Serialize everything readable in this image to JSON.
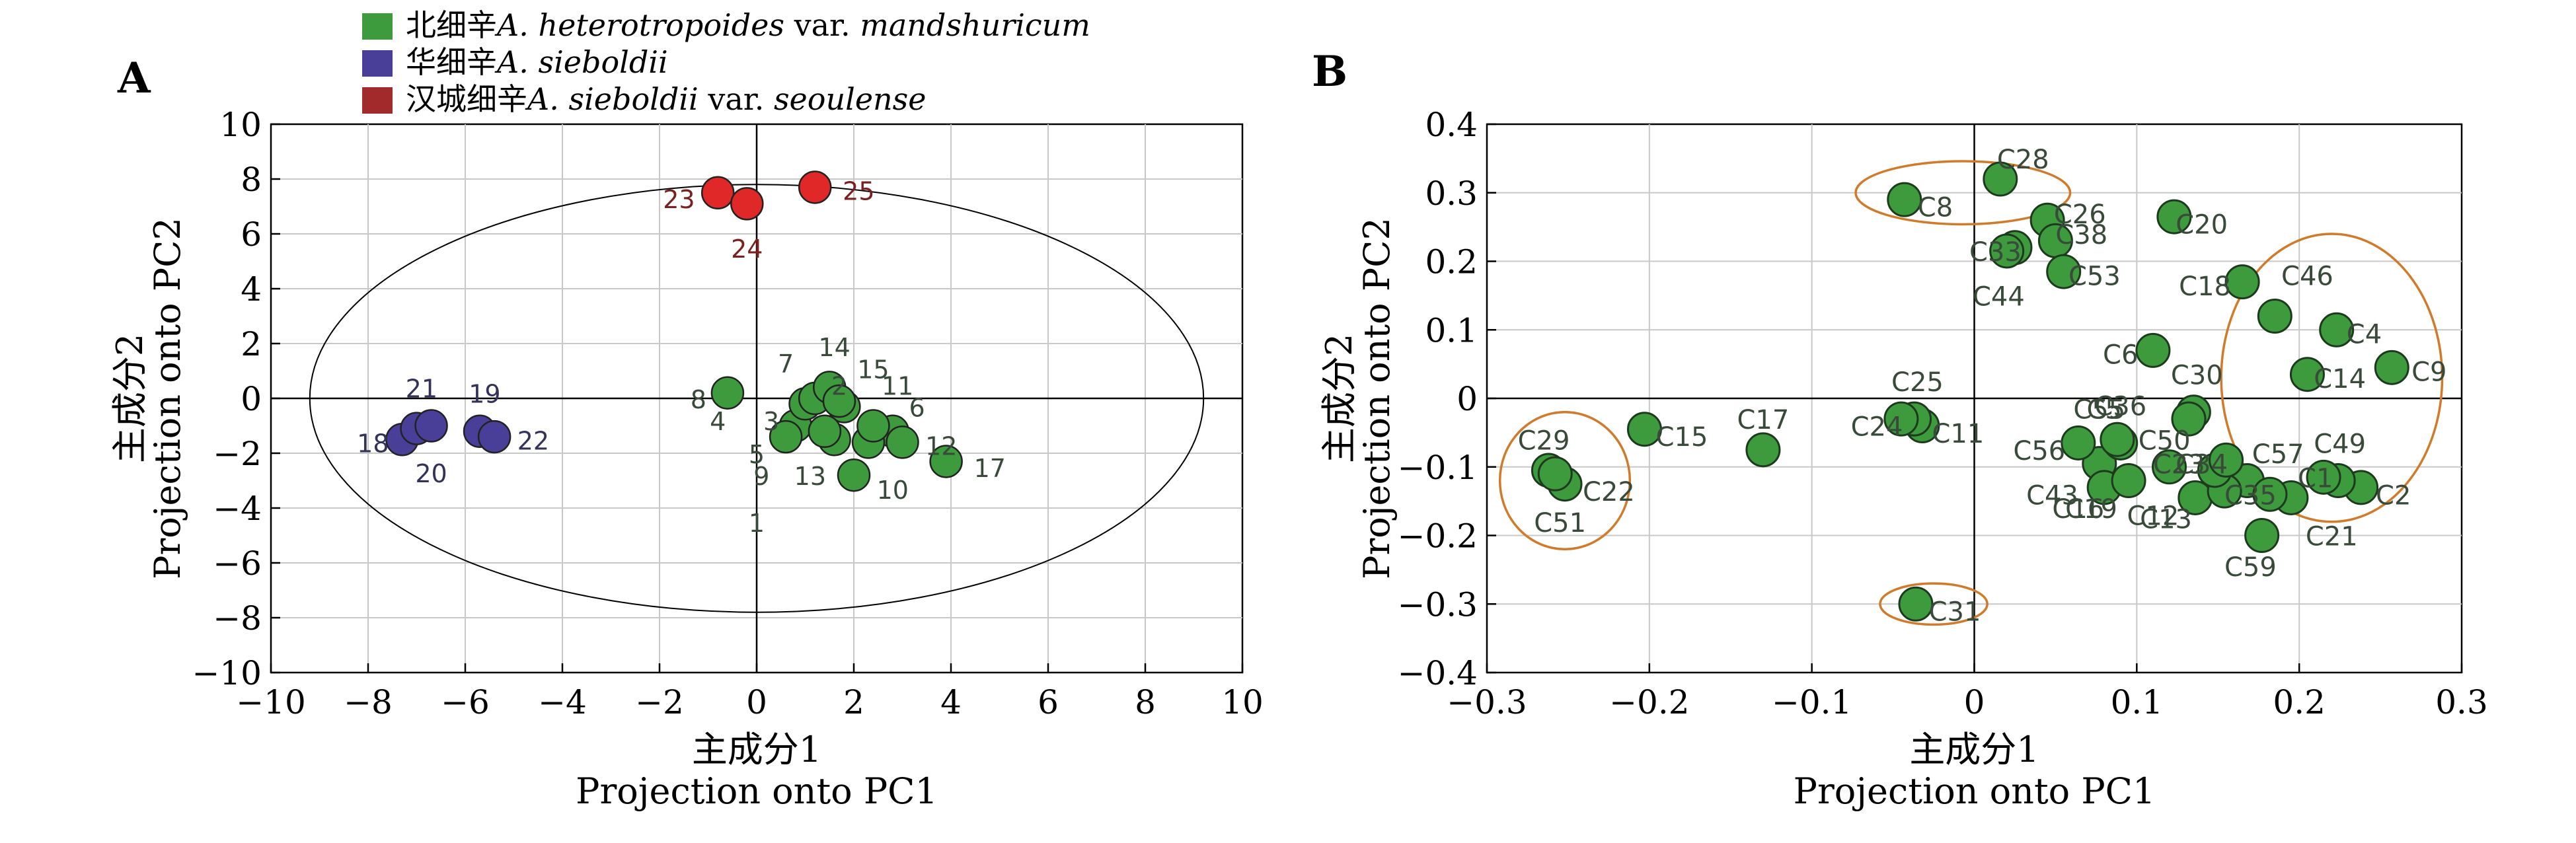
{
  "legend": {
    "position": "top",
    "items": [
      {
        "cn": "北细辛",
        "latin": "A. heterotropoides",
        "var": " var. ",
        "varname": "mandshuricum",
        "color": "#3d9a3d"
      },
      {
        "cn": "华细辛",
        "latin": "A. sieboldii",
        "var": "",
        "varname": "",
        "color": "#4a3f98"
      },
      {
        "cn": "汉城细辛",
        "latin": "A. sieboldii",
        "var": " var. ",
        "varname": "seoulense",
        "color": "#a32a2a"
      }
    ]
  },
  "chart_data": [
    {
      "panel": "A",
      "type": "scatter",
      "xlabel_cn": "主成分1",
      "xlabel": "Projection onto PC1",
      "ylabel_cn": "主成分2",
      "ylabel": "Projection onto PC2",
      "xlim": [
        -10,
        10
      ],
      "ylim": [
        -10,
        10
      ],
      "xticks": [
        -10,
        -8,
        -6,
        -4,
        -2,
        0,
        2,
        4,
        6,
        8,
        10
      ],
      "yticks": [
        -10,
        -8,
        -6,
        -4,
        -2,
        0,
        2,
        4,
        6,
        8,
        10
      ],
      "xtick_labels": [
        "−10",
        "−8",
        "−6",
        "−4",
        "−2",
        "0",
        "2",
        "4",
        "6",
        "8",
        "10"
      ],
      "ytick_labels": [
        "−10",
        "−8",
        "−6",
        "−4",
        "−2",
        "0",
        "2",
        "4",
        "6",
        "8",
        "10"
      ],
      "grid": true,
      "ellipse": {
        "cx": 0,
        "cy": 0,
        "rx": 9.2,
        "ry": 7.8
      },
      "series": [
        {
          "group": 0,
          "color": "#3d9a3d",
          "label_color": "#3a4a3a",
          "points": [
            {
              "id": "1",
              "x": 2.0,
              "y": -2.8,
              "lx": 0,
              "ly": -4.5
            },
            {
              "id": "2",
              "x": 1.8,
              "y": -0.3,
              "lx": 1.7,
              "ly": 0.5
            },
            {
              "id": "3",
              "x": 0.8,
              "y": -1.0,
              "lx": 0.3,
              "ly": -0.8
            },
            {
              "id": "4",
              "x": 1.0,
              "y": -0.2,
              "lx": -0.8,
              "ly": -0.8
            },
            {
              "id": "5",
              "x": 1.6,
              "y": -1.5,
              "lx": 0,
              "ly": -2.0
            },
            {
              "id": "6",
              "x": 2.8,
              "y": -1.2,
              "lx": 3.3,
              "ly": -0.3
            },
            {
              "id": "7",
              "x": 1.2,
              "y": 0.0,
              "lx": 0.6,
              "ly": 1.3
            },
            {
              "id": "8",
              "x": -0.6,
              "y": 0.2,
              "lx": -1.2,
              "ly": 0
            },
            {
              "id": "9",
              "x": 0.6,
              "y": -1.4,
              "lx": 0.1,
              "ly": -2.8
            },
            {
              "id": "10",
              "x": 2.3,
              "y": -1.6,
              "lx": 2.8,
              "ly": -3.3
            },
            {
              "id": "11",
              "x": 2.4,
              "y": -1.0,
              "lx": 2.9,
              "ly": 0.5
            },
            {
              "id": "12",
              "x": 3.0,
              "y": -1.6,
              "lx": 3.8,
              "ly": -1.7
            },
            {
              "id": "13",
              "x": 1.4,
              "y": -1.2,
              "lx": 1.1,
              "ly": -2.8
            },
            {
              "id": "14",
              "x": 1.5,
              "y": 0.4,
              "lx": 1.6,
              "ly": 1.9
            },
            {
              "id": "15",
              "x": 1.7,
              "y": -0.1,
              "lx": 2.4,
              "ly": 1.1
            },
            {
              "id": "17",
              "x": 3.9,
              "y": -2.3,
              "lx": 4.8,
              "ly": -2.5
            }
          ]
        },
        {
          "group": 1,
          "color": "#4a3f98",
          "label_color": "#33335a",
          "points": [
            {
              "id": "18",
              "x": -7.3,
              "y": -1.5,
              "lx": -7.9,
              "ly": -1.6
            },
            {
              "id": "19",
              "x": -5.7,
              "y": -1.2,
              "lx": -5.6,
              "ly": 0.2
            },
            {
              "id": "20",
              "x": -7.0,
              "y": -1.1,
              "lx": -6.7,
              "ly": -2.7
            },
            {
              "id": "21",
              "x": -6.7,
              "y": -1.0,
              "lx": -6.9,
              "ly": 0.4
            },
            {
              "id": "22",
              "x": -5.4,
              "y": -1.4,
              "lx": -4.6,
              "ly": -1.5
            }
          ]
        },
        {
          "group": 2,
          "color": "#e02828",
          "label_color": "#7a2020",
          "points": [
            {
              "id": "23",
              "x": -0.8,
              "y": 7.5,
              "lx": -1.6,
              "ly": 7.3
            },
            {
              "id": "24",
              "x": -0.2,
              "y": 7.1,
              "lx": -0.2,
              "ly": 5.5
            },
            {
              "id": "25",
              "x": 1.2,
              "y": 7.7,
              "lx": 2.1,
              "ly": 7.6
            }
          ]
        }
      ]
    },
    {
      "panel": "B",
      "type": "scatter",
      "xlabel_cn": "主成分1",
      "xlabel": "Projection onto PC1",
      "ylabel_cn": "主成分2",
      "ylabel": "Projection onto PC2",
      "xlim": [
        -0.3,
        0.3
      ],
      "ylim": [
        -0.4,
        0.4
      ],
      "xticks": [
        -0.3,
        -0.2,
        -0.1,
        0,
        0.1,
        0.2,
        0.3
      ],
      "yticks": [
        -0.4,
        -0.3,
        -0.2,
        -0.1,
        0,
        0.1,
        0.2,
        0.3,
        0.4
      ],
      "xtick_labels": [
        "−0.3",
        "−0.2",
        "−0.1",
        "0",
        "0.1",
        "0.2",
        "0.3"
      ],
      "ytick_labels": [
        "−0.4",
        "−0.3",
        "−0.2",
        "−0.1",
        "0",
        "0.1",
        "0.2",
        "0.3",
        "0.4"
      ],
      "grid": true,
      "ellipses": [
        {
          "cx": -0.252,
          "cy": -0.12,
          "rx": 0.04,
          "ry": 0.1
        },
        {
          "cx": -0.007,
          "cy": 0.3,
          "rx": 0.066,
          "ry": 0.046
        },
        {
          "cx": -0.025,
          "cy": -0.3,
          "rx": 0.033,
          "ry": 0.03
        },
        {
          "cx": 0.22,
          "cy": 0.03,
          "rx": 0.068,
          "ry": 0.21
        }
      ],
      "ellipse_color": "#d07a2a",
      "point_color": "#3d9a3d",
      "label_color": "#3a4a3a",
      "points": [
        {
          "id": "C2",
          "x": 0.238,
          "y": -0.13,
          "lx": 0.258,
          "ly": -0.14
        },
        {
          "id": "C4",
          "x": 0.223,
          "y": 0.1,
          "lx": 0.24,
          "ly": 0.095
        },
        {
          "id": "C6",
          "x": 0.11,
          "y": 0.07,
          "lx": 0.09,
          "ly": 0.065
        },
        {
          "id": "C8",
          "x": -0.043,
          "y": 0.29,
          "lx": -0.024,
          "ly": 0.28
        },
        {
          "id": "C9",
          "x": 0.257,
          "y": 0.045,
          "lx": 0.28,
          "ly": 0.04
        },
        {
          "id": "C11",
          "x": -0.032,
          "y": -0.04,
          "lx": -0.01,
          "ly": -0.05
        },
        {
          "id": "C14",
          "x": 0.205,
          "y": 0.035,
          "lx": 0.225,
          "ly": 0.03
        },
        {
          "id": "C15",
          "x": -0.203,
          "y": -0.045,
          "lx": -0.18,
          "ly": -0.055
        },
        {
          "id": "C17",
          "x": -0.13,
          "y": -0.075,
          "lx": -0.13,
          "ly": -0.03
        },
        {
          "id": "C18",
          "x": 0.165,
          "y": 0.17,
          "lx": 0.142,
          "ly": 0.165
        },
        {
          "id": "C20",
          "x": 0.123,
          "y": 0.265,
          "lx": 0.14,
          "ly": 0.255
        },
        {
          "id": "C21",
          "x": 0.195,
          "y": -0.145,
          "lx": 0.22,
          "ly": -0.2
        },
        {
          "id": "C22",
          "x": -0.252,
          "y": -0.125,
          "lx": -0.225,
          "ly": -0.135
        },
        {
          "id": "C24",
          "x": -0.037,
          "y": -0.03,
          "lx": -0.06,
          "ly": -0.04
        },
        {
          "id": "C25",
          "x": -0.045,
          "y": -0.03,
          "lx": -0.035,
          "ly": 0.025
        },
        {
          "id": "C26",
          "x": 0.045,
          "y": 0.26,
          "lx": 0.065,
          "ly": 0.27
        },
        {
          "id": "C28",
          "x": 0.016,
          "y": 0.32,
          "lx": 0.03,
          "ly": 0.35
        },
        {
          "id": "C29",
          "x": -0.262,
          "y": -0.105,
          "lx": -0.265,
          "ly": -0.06
        },
        {
          "id": "C30",
          "x": 0.135,
          "y": -0.02,
          "lx": 0.137,
          "ly": 0.035
        },
        {
          "id": "C31",
          "x": -0.036,
          "y": -0.3,
          "lx": -0.012,
          "ly": -0.31
        },
        {
          "id": "C33",
          "x": 0.025,
          "y": 0.22,
          "lx": 0.013,
          "ly": 0.215
        },
        {
          "id": "C38",
          "x": 0.05,
          "y": 0.23,
          "lx": 0.066,
          "ly": 0.24
        },
        {
          "id": "C43",
          "x": 0.077,
          "y": -0.095,
          "lx": 0.048,
          "ly": -0.14
        },
        {
          "id": "C44",
          "x": 0.02,
          "y": 0.215,
          "lx": 0.015,
          "ly": 0.15
        },
        {
          "id": "C46",
          "x": 0.185,
          "y": 0.12,
          "lx": 0.205,
          "ly": 0.18
        },
        {
          "id": "C49",
          "x": 0.224,
          "y": -0.12,
          "lx": 0.225,
          "ly": -0.065
        },
        {
          "id": "C50",
          "x": 0.12,
          "y": -0.1,
          "lx": 0.117,
          "ly": -0.06
        },
        {
          "id": "C51",
          "x": -0.258,
          "y": -0.11,
          "lx": -0.255,
          "ly": -0.18
        },
        {
          "id": "C53",
          "x": 0.055,
          "y": 0.185,
          "lx": 0.074,
          "ly": 0.18
        },
        {
          "id": "C55",
          "x": 0.09,
          "y": -0.065,
          "lx": 0.077,
          "ly": -0.015
        },
        {
          "id": "C56",
          "x": 0.064,
          "y": -0.065,
          "lx": 0.04,
          "ly": -0.075
        },
        {
          "id": "C57",
          "x": 0.168,
          "y": -0.12,
          "lx": 0.187,
          "ly": -0.08
        },
        {
          "id": "C59",
          "x": 0.177,
          "y": -0.2,
          "lx": 0.17,
          "ly": -0.245
        },
        {
          "id": "C5",
          "x": 0.088,
          "y": -0.06,
          "lx": 0.08,
          "ly": -0.015
        },
        {
          "id": "C12",
          "x": 0.136,
          "y": -0.145,
          "lx": 0.11,
          "ly": -0.17
        },
        {
          "id": "C13",
          "x": 0.154,
          "y": -0.135,
          "lx": 0.118,
          "ly": -0.175
        },
        {
          "id": "C16",
          "x": 0.08,
          "y": -0.13,
          "lx": 0.064,
          "ly": -0.16
        },
        {
          "id": "C19",
          "x": 0.095,
          "y": -0.12,
          "lx": 0.072,
          "ly": -0.16
        },
        {
          "id": "C23",
          "x": 0.132,
          "y": -0.03,
          "lx": 0.126,
          "ly": -0.095
        },
        {
          "id": "C34",
          "x": 0.148,
          "y": -0.105,
          "lx": 0.14,
          "ly": -0.095
        },
        {
          "id": "C35",
          "x": 0.182,
          "y": -0.14,
          "lx": 0.17,
          "ly": -0.14
        },
        {
          "id": "C36",
          "x": 0.155,
          "y": -0.09,
          "lx": 0.09,
          "ly": -0.01
        },
        {
          "id": "C1",
          "x": 0.215,
          "y": -0.115,
          "lx": 0.21,
          "ly": -0.115
        }
      ]
    }
  ]
}
